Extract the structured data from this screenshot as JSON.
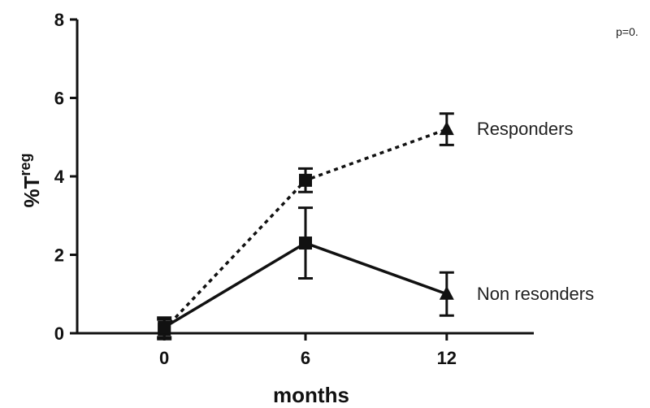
{
  "chart_data": {
    "type": "line",
    "title": "",
    "xlabel": "months",
    "ylabel": "%T",
    "ylabel_superscript": "reg",
    "x": [
      0,
      6,
      12
    ],
    "xlim": [
      -3.7,
      15.7
    ],
    "ylim": [
      0,
      8
    ],
    "xticks": [
      0,
      6,
      12
    ],
    "yticks": [
      0,
      2,
      4,
      6,
      8
    ],
    "grid": false,
    "annotation": "p=0.",
    "series": [
      {
        "name": "Responders",
        "line_style": "dotted",
        "values": [
          0.1,
          3.9,
          5.2
        ],
        "errors": [
          0.25,
          0.3,
          0.4
        ],
        "markers": [
          "square",
          "square",
          "triangle"
        ]
      },
      {
        "name": "Non resonders",
        "line_style": "solid",
        "values": [
          0.15,
          2.3,
          1.0
        ],
        "errors": [
          0.25,
          0.9,
          0.55
        ],
        "markers": [
          "square",
          "square",
          "triangle"
        ]
      }
    ],
    "color": "#111111"
  }
}
